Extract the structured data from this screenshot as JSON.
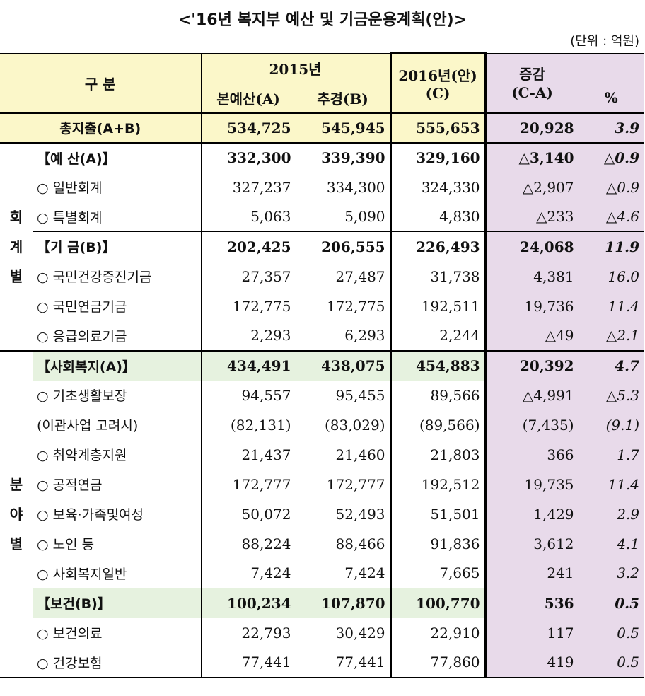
{
  "title": "<'16년 복지부 예산 및 기금운용계획(안)>",
  "unit": "(단위 : 억원)",
  "header": {
    "gubun": "구  분",
    "y2015": "2015년",
    "base": "본예산(A)",
    "supp": "추경(B)",
    "y2016_line1": "2016년(안)",
    "y2016_line2": "(C)",
    "change_line1": "증감",
    "change_line2": "(C-A)",
    "pct": "%"
  },
  "total": {
    "label": "총지출(A+B)",
    "a": "534,725",
    "b": "545,945",
    "c": "555,653",
    "d": "20,928",
    "p": "3.9"
  },
  "group1_label": [
    "회",
    "계",
    "별"
  ],
  "group1_rows": [
    {
      "label": "【예 산(A)】",
      "a": "332,300",
      "b": "339,390",
      "c": "329,160",
      "d": "△3,140",
      "p": "△0.9",
      "bold": true
    },
    {
      "label": "○ 일반회계",
      "a": "327,237",
      "b": "334,300",
      "c": "324,330",
      "d": "△2,907",
      "p": "△0.9"
    },
    {
      "label": "○ 특별회계",
      "a": "5,063",
      "b": "5,090",
      "c": "4,830",
      "d": "△233",
      "p": "△4.6"
    },
    {
      "label": "【기 금(B)】",
      "a": "202,425",
      "b": "206,555",
      "c": "226,493",
      "d": "24,068",
      "p": "11.9",
      "bold": true
    },
    {
      "label": "○ 국민건강증진기금",
      "a": "27,357",
      "b": "27,487",
      "c": "31,738",
      "d": "4,381",
      "p": "16.0"
    },
    {
      "label": "○ 국민연금기금",
      "a": "172,775",
      "b": "172,775",
      "c": "192,511",
      "d": "19,736",
      "p": "11.4"
    },
    {
      "label": "○ 응급의료기금",
      "a": "2,293",
      "b": "6,293",
      "c": "2,244",
      "d": "△49",
      "p": "△2.1"
    }
  ],
  "group2_label": [
    "분",
    "야",
    "별"
  ],
  "group2_rows": [
    {
      "label": "【사회복지(A)】",
      "a": "434,491",
      "b": "438,075",
      "c": "454,883",
      "d": "20,392",
      "p": "4.7",
      "bold": true,
      "green": true
    },
    {
      "label": "○ 기초생활보장",
      "a": "94,557",
      "b": "95,455",
      "c": "89,566",
      "d": "△4,991",
      "p": "△5.3"
    },
    {
      "label": "(이관사업 고려시)",
      "a": "(82,131)",
      "b": "(83,029)",
      "c": "(89,566)",
      "d": "(7,435)",
      "p": "(9.1)"
    },
    {
      "label": "○ 취약계층지원",
      "a": "21,437",
      "b": "21,460",
      "c": "21,803",
      "d": "366",
      "p": "1.7"
    },
    {
      "label": "○ 공적연금",
      "a": "172,777",
      "b": "172,777",
      "c": "192,512",
      "d": "19,735",
      "p": "11.4"
    },
    {
      "label": "○ 보육·가족및여성",
      "a": "50,072",
      "b": "52,493",
      "c": "51,501",
      "d": "1,429",
      "p": "2.9"
    },
    {
      "label": "○ 노인 등",
      "a": "88,224",
      "b": "88,466",
      "c": "91,836",
      "d": "3,612",
      "p": "4.1"
    },
    {
      "label": "○ 사회복지일반",
      "a": "7,424",
      "b": "7,424",
      "c": "7,665",
      "d": "241",
      "p": "3.2"
    },
    {
      "label": "【보건(B)】",
      "a": "100,234",
      "b": "107,870",
      "c": "100,770",
      "d": "536",
      "p": "0.5",
      "bold": true,
      "green": true
    },
    {
      "label": "○ 보건의료",
      "a": "22,793",
      "b": "30,429",
      "c": "22,910",
      "d": "117",
      "p": "0.5"
    },
    {
      "label": "○ 건강보험",
      "a": "77,441",
      "b": "77,441",
      "c": "77,860",
      "d": "419",
      "p": "0.5"
    }
  ]
}
